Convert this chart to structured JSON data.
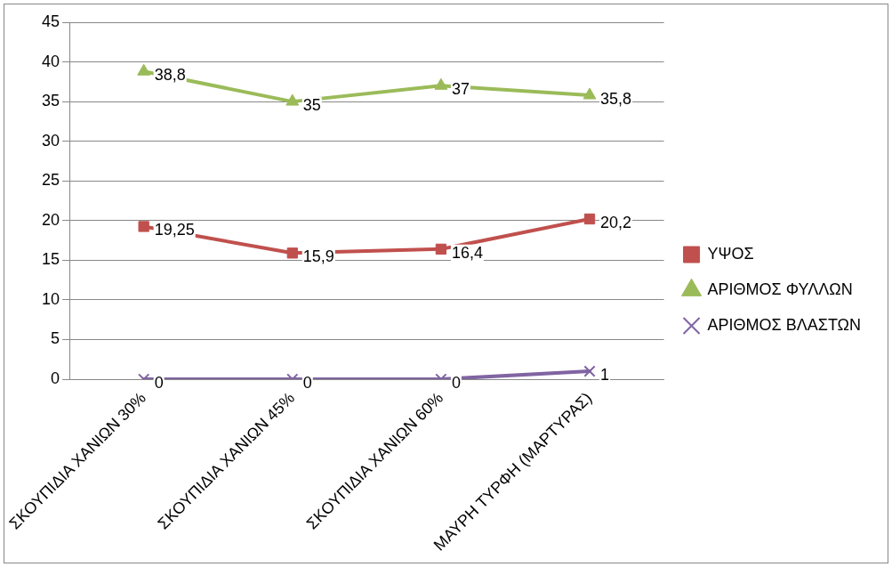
{
  "chart_data": {
    "type": "line",
    "categories": [
      "ΣΚΟΥΠΙΔΙΑ ΧΑΝΙΩΝ 30%",
      "ΣΚΟΥΠΙΔΙΑ ΧΑΝΙΩΝ 45%",
      "ΣΚΟΥΠΙΔΙΑ ΧΑΝΙΩΝ 60%",
      "ΜΑΥΡΗ ΤΥΡΦΗ (ΜΑΡΤΥΡΑΣ)"
    ],
    "series": [
      {
        "name": "ΥΨΟΣ",
        "color": "#c0504d",
        "marker": "square",
        "values": [
          19.25,
          15.9,
          16.4,
          20.2
        ],
        "value_labels": [
          "19,25",
          "15,9",
          "16,4",
          "20,2"
        ]
      },
      {
        "name": "ΑΡΙΘΜΟΣ ΦΥΛΛΩΝ",
        "color": "#9bbb59",
        "marker": "triangle",
        "values": [
          38.8,
          35,
          37,
          35.8
        ],
        "value_labels": [
          "38,8",
          "35",
          "37",
          "35,8"
        ]
      },
      {
        "name": "ΑΡΙΘΜΟΣ ΒΛΑΣΤΩΝ",
        "color": "#8064a2",
        "marker": "cross",
        "values": [
          0,
          0,
          0,
          1
        ],
        "value_labels": [
          "0",
          "0",
          "0",
          "1"
        ]
      }
    ],
    "ylim": [
      0,
      45
    ],
    "yticks": [
      0,
      5,
      10,
      15,
      20,
      25,
      30,
      35,
      40,
      45
    ],
    "grid": "y",
    "legend": "right",
    "line_style": "solid"
  }
}
